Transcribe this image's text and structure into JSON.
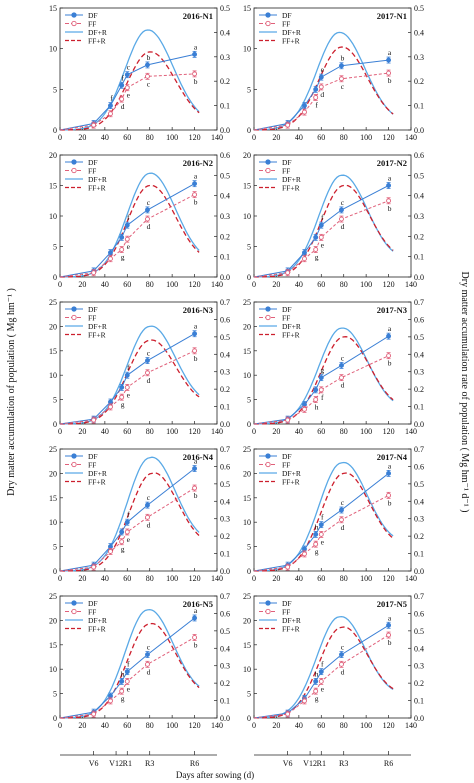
{
  "figure": {
    "ylabel_left": "Dry matter accumulation of population ( Mg hm⁻¹ )",
    "ylabel_right": "Dry matter accumulation rate of population ( Mg hm⁻¹ d⁻¹ )",
    "xlabel": "Days after sowing (d)",
    "stages": [
      "V6",
      "V12",
      "R1",
      "R3",
      "R6"
    ],
    "x_ticks": [
      0,
      20,
      40,
      60,
      80,
      100,
      120,
      140
    ],
    "legend": [
      "DF",
      "FF",
      "DF+R",
      "FF+R"
    ],
    "colors": {
      "DF": "#3a7fd5",
      "FF": "#e0607a",
      "DF+R": "#5aa9e6",
      "FF+R": "#cc1f2d"
    }
  },
  "chart_data": [
    {
      "type": "line",
      "title": "2016-N1",
      "xlim": [
        0,
        140
      ],
      "ylim": [
        0,
        15
      ],
      "y2lim": [
        0,
        0.5
      ],
      "yticks": [
        0,
        5,
        10,
        15
      ],
      "y2ticks": [
        0,
        0.1,
        0.2,
        0.3,
        0.4,
        0.5
      ],
      "x": [
        0,
        30,
        45,
        55,
        60,
        78,
        120
      ],
      "series": [
        {
          "name": "DF",
          "axis": "left",
          "values": [
            0,
            0.8,
            3,
            5.5,
            6.8,
            8,
            9.3
          ]
        },
        {
          "name": "FF",
          "axis": "left",
          "values": [
            0,
            0.6,
            2,
            3.8,
            5.2,
            6.6,
            6.9
          ]
        },
        {
          "name": "DF+R",
          "axis": "right",
          "peak": 0.41,
          "peak_x": 78,
          "start": 0,
          "end": 0.02
        },
        {
          "name": "FF+R",
          "axis": "right",
          "peak": 0.32,
          "peak_x": 80,
          "start": 0,
          "end": 0.02
        }
      ],
      "letters": [
        "f",
        "f",
        "d",
        "c",
        "e",
        "b",
        "c",
        "a",
        "b"
      ]
    },
    {
      "type": "line",
      "title": "2017-N1",
      "xlim": [
        0,
        140
      ],
      "ylim": [
        0,
        15
      ],
      "y2lim": [
        0,
        0.5
      ],
      "yticks": [
        0,
        5,
        10,
        15
      ],
      "y2ticks": [
        0,
        0.1,
        0.2,
        0.3,
        0.4,
        0.5
      ],
      "x": [
        0,
        30,
        45,
        55,
        60,
        78,
        120
      ],
      "series": [
        {
          "name": "DF",
          "axis": "left",
          "values": [
            0,
            0.8,
            3,
            5,
            6.5,
            7.9,
            8.6
          ]
        },
        {
          "name": "FF",
          "axis": "left",
          "values": [
            0,
            0.6,
            2.2,
            4,
            5.3,
            6.3,
            7
          ]
        },
        {
          "name": "DF+R",
          "axis": "right",
          "peak": 0.4,
          "peak_x": 76,
          "start": 0,
          "end": 0.02
        },
        {
          "name": "FF+R",
          "axis": "right",
          "peak": 0.34,
          "peak_x": 78,
          "start": 0,
          "end": 0.02
        }
      ],
      "letters": [
        "f",
        "e",
        "d",
        "b",
        "c",
        "a",
        "b"
      ]
    },
    {
      "type": "line",
      "title": "2016-N2",
      "xlim": [
        0,
        140
      ],
      "ylim": [
        0,
        20
      ],
      "y2lim": [
        0,
        0.6
      ],
      "yticks": [
        0,
        5,
        10,
        15,
        20
      ],
      "y2ticks": [
        0,
        0.1,
        0.2,
        0.3,
        0.4,
        0.5,
        0.6
      ],
      "x": [
        0,
        30,
        45,
        55,
        60,
        78,
        120
      ],
      "series": [
        {
          "name": "DF",
          "axis": "left",
          "values": [
            0,
            1,
            4,
            6.5,
            8.5,
            11,
            15.3
          ]
        },
        {
          "name": "FF",
          "axis": "left",
          "values": [
            0,
            0.7,
            3,
            4.5,
            6.2,
            9.5,
            13.5
          ]
        },
        {
          "name": "DF+R",
          "axis": "right",
          "peak": 0.51,
          "peak_x": 80,
          "start": 0,
          "end": 0.05
        },
        {
          "name": "FF+R",
          "axis": "right",
          "peak": 0.45,
          "peak_x": 80,
          "start": 0,
          "end": 0.05
        }
      ],
      "letters": [
        "g",
        "f",
        "e",
        "c",
        "d",
        "a",
        "b"
      ]
    },
    {
      "type": "line",
      "title": "2017-N2",
      "xlim": [
        0,
        140
      ],
      "ylim": [
        0,
        20
      ],
      "y2lim": [
        0,
        0.6
      ],
      "yticks": [
        0,
        5,
        10,
        15,
        20
      ],
      "y2ticks": [
        0,
        0.1,
        0.2,
        0.3,
        0.4,
        0.5,
        0.6
      ],
      "x": [
        0,
        30,
        45,
        55,
        60,
        78,
        120
      ],
      "series": [
        {
          "name": "DF",
          "axis": "left",
          "values": [
            0,
            1,
            4,
            6.5,
            8.5,
            11,
            15
          ]
        },
        {
          "name": "FF",
          "axis": "left",
          "values": [
            0,
            0.7,
            3,
            4.5,
            6.5,
            9.5,
            12.5
          ]
        },
        {
          "name": "DF+R",
          "axis": "right",
          "peak": 0.5,
          "peak_x": 78,
          "start": 0,
          "end": 0.06
        },
        {
          "name": "FF+R",
          "axis": "right",
          "peak": 0.45,
          "peak_x": 80,
          "start": 0,
          "end": 0.06
        }
      ],
      "letters": [
        "g",
        "f",
        "e",
        "c",
        "d",
        "a",
        "b"
      ]
    },
    {
      "type": "line",
      "title": "2016-N3",
      "xlim": [
        0,
        140
      ],
      "ylim": [
        0,
        25
      ],
      "y2lim": [
        0,
        0.7
      ],
      "yticks": [
        0,
        5,
        10,
        15,
        20,
        25
      ],
      "y2ticks": [
        0,
        0.1,
        0.2,
        0.3,
        0.4,
        0.5,
        0.6,
        0.7
      ],
      "x": [
        0,
        30,
        45,
        55,
        60,
        78,
        120
      ],
      "series": [
        {
          "name": "DF",
          "axis": "left",
          "values": [
            0,
            1,
            4.5,
            7.5,
            10,
            13,
            18.5
          ]
        },
        {
          "name": "FF",
          "axis": "left",
          "values": [
            0,
            0.8,
            3.5,
            5.5,
            7.5,
            10.5,
            15
          ]
        },
        {
          "name": "DF+R",
          "axis": "right",
          "peak": 0.56,
          "peak_x": 80,
          "start": 0,
          "end": 0.08
        },
        {
          "name": "FF+R",
          "axis": "right",
          "peak": 0.48,
          "peak_x": 80,
          "start": 0,
          "end": 0.08
        }
      ],
      "letters": [
        "g",
        "f",
        "e",
        "c",
        "d",
        "a",
        "b"
      ]
    },
    {
      "type": "line",
      "title": "2017-N3",
      "xlim": [
        0,
        140
      ],
      "ylim": [
        0,
        25
      ],
      "y2lim": [
        0,
        0.7
      ],
      "yticks": [
        0,
        5,
        10,
        15,
        20,
        25
      ],
      "y2ticks": [
        0,
        0.1,
        0.2,
        0.3,
        0.4,
        0.5,
        0.6,
        0.7
      ],
      "x": [
        0,
        30,
        45,
        55,
        60,
        78,
        120
      ],
      "series": [
        {
          "name": "DF",
          "axis": "left",
          "values": [
            0,
            1,
            4,
            7,
            9.5,
            12,
            18
          ]
        },
        {
          "name": "FF",
          "axis": "left",
          "values": [
            0,
            0.8,
            3,
            5,
            7,
            9.5,
            14
          ]
        },
        {
          "name": "DF+R",
          "axis": "right",
          "peak": 0.55,
          "peak_x": 78,
          "start": 0,
          "end": 0.06
        },
        {
          "name": "FF+R",
          "axis": "right",
          "peak": 0.5,
          "peak_x": 80,
          "start": 0,
          "end": 0.06
        }
      ],
      "letters": [
        "h",
        "g",
        "f",
        "c",
        "d",
        "a",
        "b"
      ]
    },
    {
      "type": "line",
      "title": "2016-N4",
      "xlim": [
        0,
        140
      ],
      "ylim": [
        0,
        25
      ],
      "y2lim": [
        0,
        0.7
      ],
      "yticks": [
        0,
        5,
        10,
        15,
        20,
        25
      ],
      "y2ticks": [
        0,
        0.1,
        0.2,
        0.3,
        0.4,
        0.5,
        0.6,
        0.7
      ],
      "x": [
        0,
        30,
        45,
        55,
        60,
        78,
        120
      ],
      "series": [
        {
          "name": "DF",
          "axis": "left",
          "values": [
            0,
            1.2,
            5,
            8,
            10,
            13.5,
            21
          ]
        },
        {
          "name": "FF",
          "axis": "left",
          "values": [
            0,
            0.8,
            4,
            6,
            8,
            11,
            17
          ]
        },
        {
          "name": "DF+R",
          "axis": "right",
          "peak": 0.65,
          "peak_x": 80,
          "start": 0,
          "end": 0.12
        },
        {
          "name": "FF+R",
          "axis": "right",
          "peak": 0.56,
          "peak_x": 82,
          "start": 0,
          "end": 0.1
        }
      ],
      "letters": [
        "g",
        "f",
        "e",
        "c",
        "d",
        "a",
        "b"
      ]
    },
    {
      "type": "line",
      "title": "2017-N4",
      "xlim": [
        0,
        140
      ],
      "ylim": [
        0,
        25
      ],
      "y2lim": [
        0,
        0.7
      ],
      "yticks": [
        0,
        5,
        10,
        15,
        20,
        25
      ],
      "y2ticks": [
        0,
        0.1,
        0.2,
        0.3,
        0.4,
        0.5,
        0.6,
        0.7
      ],
      "x": [
        0,
        30,
        45,
        55,
        60,
        78,
        120
      ],
      "series": [
        {
          "name": "DF",
          "axis": "left",
          "values": [
            0,
            1.2,
            4.5,
            7.5,
            9.5,
            12.5,
            20
          ]
        },
        {
          "name": "FF",
          "axis": "left",
          "values": [
            0,
            0.8,
            3.5,
            5.5,
            7.5,
            10.5,
            15.5
          ]
        },
        {
          "name": "DF+R",
          "axis": "right",
          "peak": 0.62,
          "peak_x": 78,
          "start": 0,
          "end": 0.12
        },
        {
          "name": "FF+R",
          "axis": "right",
          "peak": 0.56,
          "peak_x": 80,
          "start": 0,
          "end": 0.1
        }
      ],
      "letters": [
        "h",
        "g",
        "f",
        "e",
        "c",
        "d",
        "a",
        "b"
      ]
    },
    {
      "type": "line",
      "title": "2016-N5",
      "xlim": [
        0,
        140
      ],
      "ylim": [
        0,
        25
      ],
      "y2lim": [
        0,
        0.7
      ],
      "yticks": [
        0,
        5,
        10,
        15,
        20,
        25
      ],
      "y2ticks": [
        0,
        0.1,
        0.2,
        0.3,
        0.4,
        0.5,
        0.6,
        0.7
      ],
      "x": [
        0,
        30,
        45,
        55,
        60,
        78,
        120
      ],
      "series": [
        {
          "name": "DF",
          "axis": "left",
          "values": [
            0,
            1.2,
            4.5,
            7.5,
            9.5,
            13,
            20.5
          ]
        },
        {
          "name": "FF",
          "axis": "left",
          "values": [
            0,
            0.8,
            3.5,
            5.5,
            7.5,
            11,
            16.5
          ]
        },
        {
          "name": "DF+R",
          "axis": "right",
          "peak": 0.62,
          "peak_x": 78,
          "start": 0,
          "end": 0.1
        },
        {
          "name": "FF+R",
          "axis": "right",
          "peak": 0.54,
          "peak_x": 80,
          "start": 0,
          "end": 0.09
        }
      ],
      "letters": [
        "h",
        "g",
        "f",
        "e",
        "c",
        "d",
        "a",
        "b"
      ]
    },
    {
      "type": "line",
      "title": "2017-N5",
      "xlim": [
        0,
        140
      ],
      "ylim": [
        0,
        25
      ],
      "y2lim": [
        0,
        0.7
      ],
      "yticks": [
        0,
        5,
        10,
        15,
        20,
        25
      ],
      "y2ticks": [
        0,
        0.1,
        0.2,
        0.3,
        0.4,
        0.5,
        0.6,
        0.7
      ],
      "x": [
        0,
        30,
        45,
        55,
        60,
        78,
        120
      ],
      "series": [
        {
          "name": "DF",
          "axis": "left",
          "values": [
            0,
            1,
            4,
            7.5,
            9.5,
            13,
            19
          ]
        },
        {
          "name": "FF",
          "axis": "left",
          "values": [
            0,
            0.8,
            3.5,
            5.5,
            7.5,
            11,
            17
          ]
        },
        {
          "name": "DF+R",
          "axis": "right",
          "peak": 0.58,
          "peak_x": 76,
          "start": 0,
          "end": 0.1
        },
        {
          "name": "FF+R",
          "axis": "right",
          "peak": 0.52,
          "peak_x": 78,
          "start": 0,
          "end": 0.1
        }
      ],
      "letters": [
        "h",
        "g",
        "f",
        "e",
        "c",
        "d",
        "a",
        "b"
      ]
    }
  ]
}
